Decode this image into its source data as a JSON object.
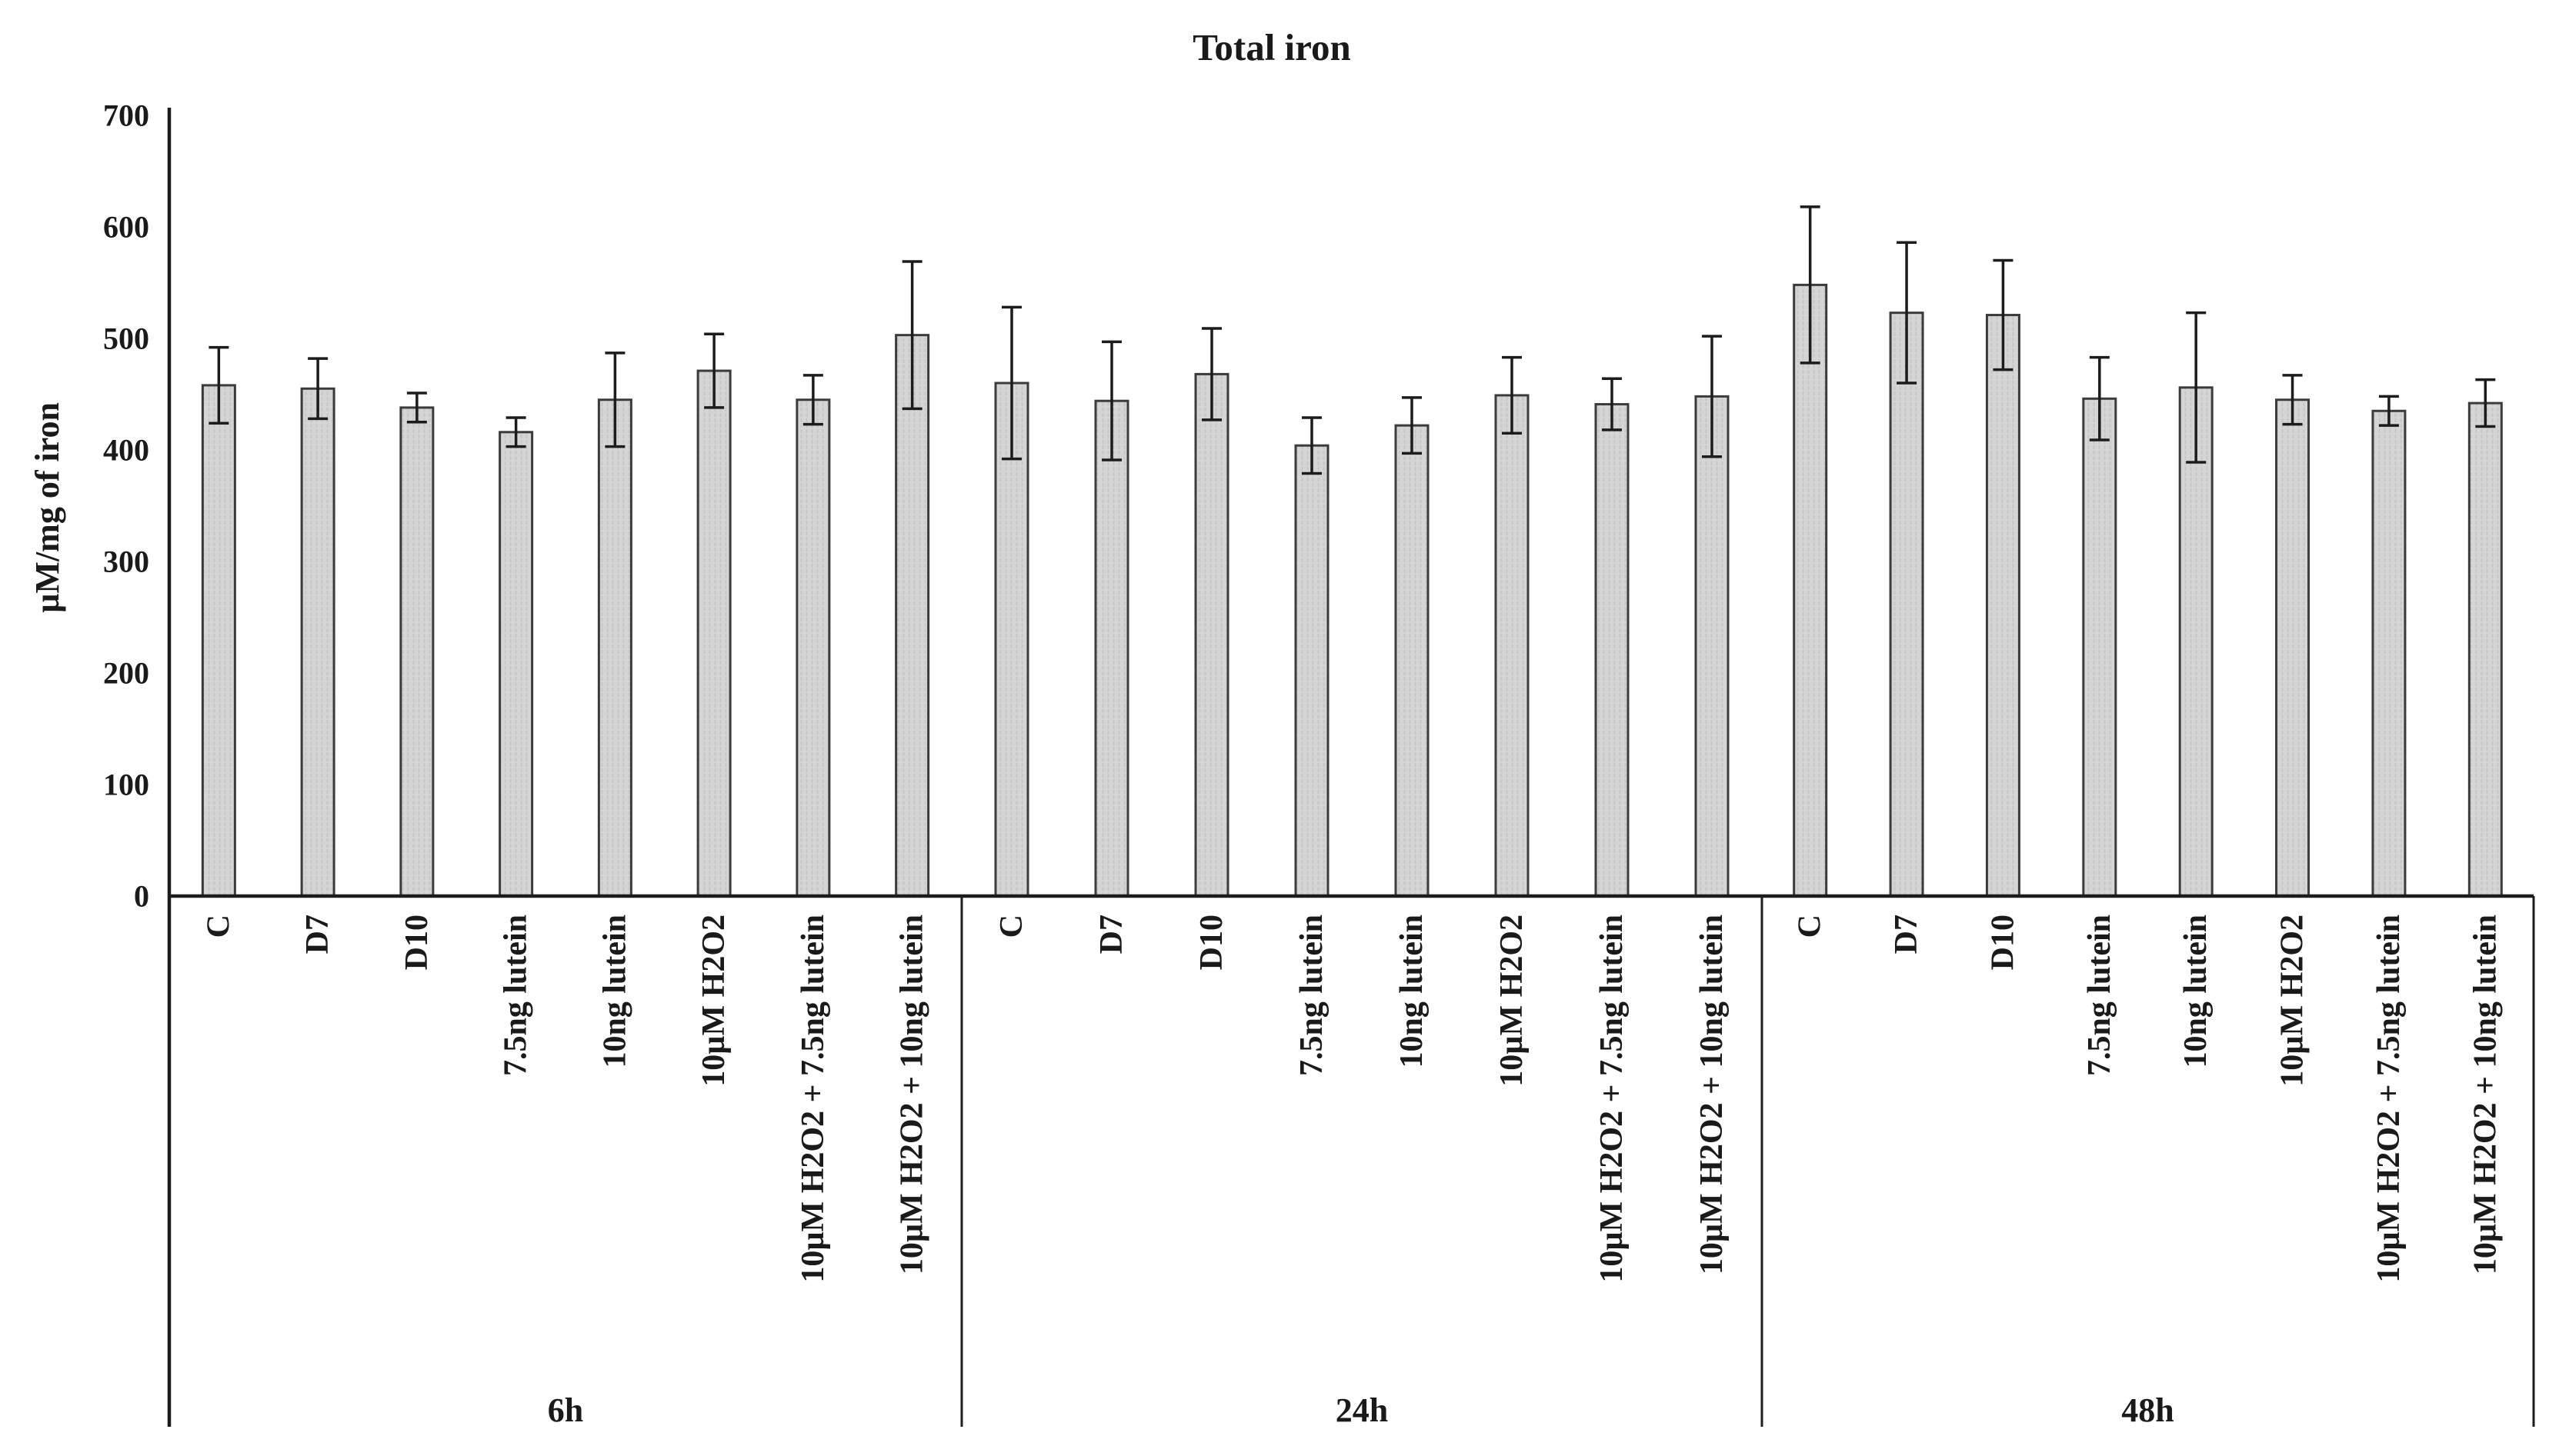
{
  "chart_data": {
    "type": "bar",
    "title": "Total iron",
    "ylabel": "µM/mg of iron",
    "xlabel": "",
    "ylim": [
      0,
      700
    ],
    "yticks": [
      "0",
      "100",
      "200",
      "300",
      "400",
      "500",
      "600",
      "700"
    ],
    "grid": false,
    "legend": "none",
    "error_bars": true,
    "bar_color": "#d5d5d5",
    "bar_stripe_color": "#c7c7c7",
    "bar_border_color": "#3b3b3b",
    "error_color": "#1c1c1c",
    "axis_color": "#1c1c1c",
    "text_color": "#1a1a1a",
    "categories": [
      "C",
      "D7",
      "D10",
      "7.5ng lutein",
      "10ng lutein",
      "10µM H2O2",
      "10µM H2O2 + 7.5ng lutein",
      "10µM H2O2 + 10ng lutein"
    ],
    "group_labels": [
      "6h",
      "24h",
      "48h"
    ],
    "series": [
      {
        "name": "6h",
        "values": [
          458,
          455,
          438,
          416,
          445,
          471,
          445,
          503
        ],
        "errors": [
          34,
          27,
          13,
          13,
          42,
          33,
          22,
          66
        ]
      },
      {
        "name": "24h",
        "values": [
          460,
          444,
          468,
          404,
          422,
          449,
          441,
          448
        ],
        "errors": [
          68,
          53,
          41,
          25,
          25,
          34,
          23,
          54
        ]
      },
      {
        "name": "48h",
        "values": [
          548,
          523,
          521,
          446,
          456,
          445,
          435,
          442
        ],
        "errors": [
          70,
          63,
          49,
          37,
          67,
          22,
          13,
          21
        ]
      }
    ]
  }
}
